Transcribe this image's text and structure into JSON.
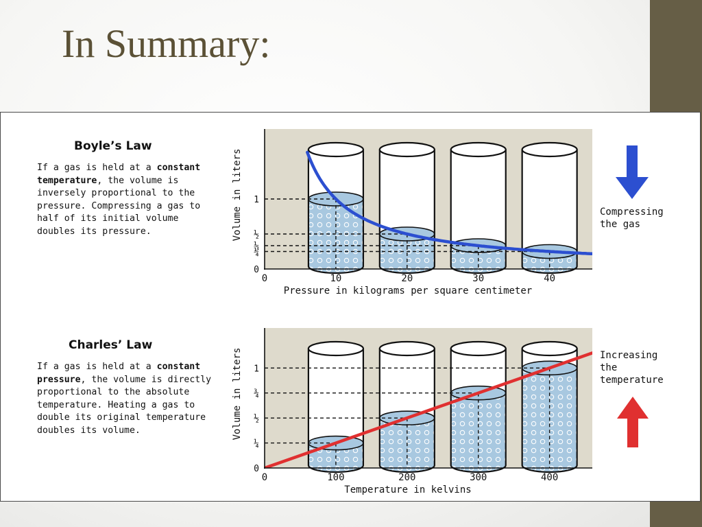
{
  "slide": {
    "title": "In Summary:",
    "accent_bar_color": "#665e46",
    "title_color": "#5b5136"
  },
  "boyle": {
    "heading": "Boyle’s Law",
    "text_before": "If a gas is held at a ",
    "text_bold": "constant temperature",
    "text_after": ", the volume is inversely proportional to the pressure. Compressing a gas to half of its initial volume doubles its pressure.",
    "side_label": "Compressing\nthe gas",
    "arrow_direction": "down",
    "arrow_color": "#2c4fd0"
  },
  "charles": {
    "heading": "Charles’ Law",
    "text_before": "If a gas is held at a ",
    "text_bold": "constant pressure",
    "text_after": ", the volume is directly proportional to the absolute temperature. Heating a gas to double its original temperature doubles its volume.",
    "side_label": "Increasing\nthe\ntemperature",
    "arrow_direction": "up",
    "arrow_color": "#e03030"
  },
  "chart_data": [
    {
      "type": "line",
      "xlabel": "Pressure in kilograms per square centimeter",
      "ylabel": "Volume in liters",
      "x_ticks": [
        "0",
        "10",
        "20",
        "30",
        "40"
      ],
      "x_tick_values": [
        0,
        10,
        20,
        30,
        40
      ],
      "y_ticks": [
        "0",
        "1/4",
        "1/3",
        "1/2",
        "1"
      ],
      "y_tick_values": [
        0,
        0.25,
        0.3333,
        0.5,
        1
      ],
      "xlim": [
        0,
        46
      ],
      "ylim": [
        0,
        2
      ],
      "curve": "volume = 10 / pressure",
      "curve_color": "#2c4fd0",
      "series": [
        {
          "x": [
            6,
            7,
            8,
            10,
            12,
            15,
            20,
            25,
            30,
            35,
            40,
            46
          ],
          "y": [
            1.67,
            1.43,
            1.25,
            1.0,
            0.83,
            0.67,
            0.5,
            0.4,
            0.33,
            0.29,
            0.25,
            0.22
          ]
        }
      ],
      "cylinders": [
        {
          "x": 10,
          "volume": 1
        },
        {
          "x": 20,
          "volume": 0.5
        },
        {
          "x": 30,
          "volume": 0.3333
        },
        {
          "x": 40,
          "volume": 0.25
        }
      ],
      "background_color": "#dedacc",
      "liquid_color": "#a8c8e0"
    },
    {
      "type": "line",
      "xlabel": "Temperature in kelvins",
      "ylabel": "Volume in liters",
      "x_ticks": [
        "0",
        "100",
        "200",
        "300",
        "400"
      ],
      "x_tick_values": [
        0,
        100,
        200,
        300,
        400
      ],
      "y_ticks": [
        "0",
        "1/4",
        "1/2",
        "3/4",
        "1"
      ],
      "y_tick_values": [
        0,
        0.25,
        0.5,
        0.75,
        1
      ],
      "xlim": [
        0,
        460
      ],
      "ylim": [
        0,
        1.4
      ],
      "curve": "volume = temperature / 400",
      "curve_color": "#e03030",
      "series": [
        {
          "x": [
            0,
            100,
            200,
            300,
            400,
            460
          ],
          "y": [
            0,
            0.25,
            0.5,
            0.75,
            1.0,
            1.15
          ]
        }
      ],
      "cylinders": [
        {
          "x": 100,
          "volume": 0.25
        },
        {
          "x": 200,
          "volume": 0.5
        },
        {
          "x": 300,
          "volume": 0.75
        },
        {
          "x": 400,
          "volume": 1
        }
      ],
      "background_color": "#dedacc",
      "liquid_color": "#a8c8e0"
    }
  ]
}
